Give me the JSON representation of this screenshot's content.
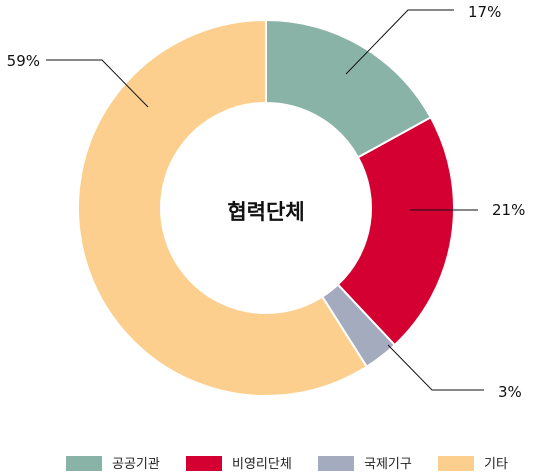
{
  "chart_data": {
    "type": "pie",
    "variant": "donut",
    "center_label": "협력단체",
    "categories": [
      "공공기관",
      "비영리단체",
      "국제기구",
      "기타"
    ],
    "values": [
      17,
      21,
      3,
      59
    ],
    "value_labels": [
      "17%",
      "21%",
      "3%",
      "59%"
    ],
    "colors": [
      "#8ab3a8",
      "#d40032",
      "#a5abbf",
      "#fccf8e"
    ],
    "legend_position": "bottom"
  }
}
